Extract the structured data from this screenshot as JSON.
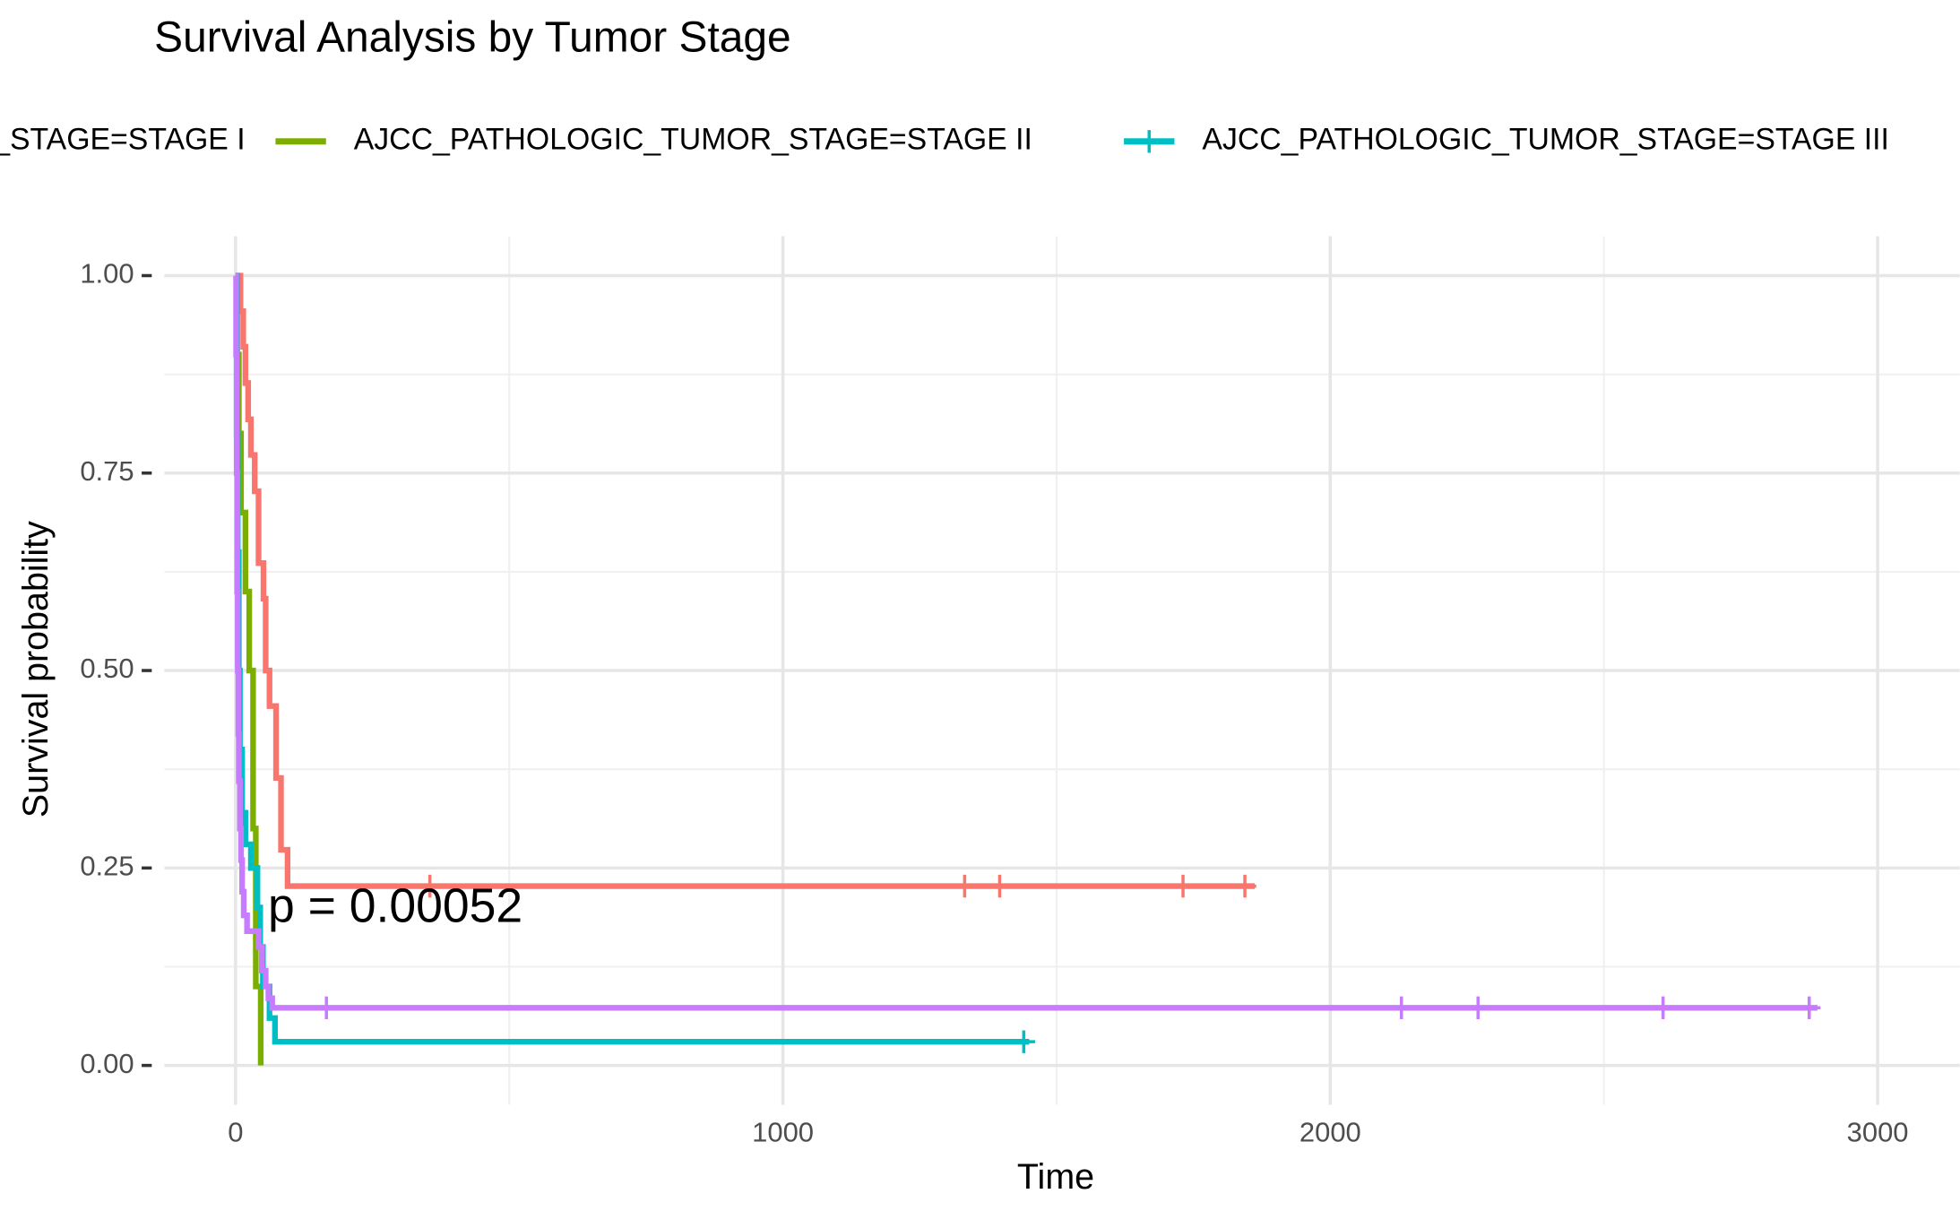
{
  "chart_data": {
    "type": "survival",
    "title": "Survival Analysis by Tumor Stage",
    "x_label": "Time",
    "y_label": "Survival probability",
    "annotation": "p = 0.00052",
    "xlim": [
      -130,
      3150
    ],
    "ylim": [
      -0.05,
      1.05
    ],
    "xticks": [
      0,
      1000,
      2000,
      3000
    ],
    "yticks": [
      {
        "value": 0,
        "label": "0.00"
      },
      {
        "value": 0.25,
        "label": "0.25"
      },
      {
        "value": 0.5,
        "label": "0.50"
      },
      {
        "value": 0.75,
        "label": "0.75"
      },
      {
        "value": 1,
        "label": "1.00"
      }
    ],
    "grid": true,
    "series": [
      {
        "name": "AJCC_PATHOLOGIC_TUMOR_STAGE=STAGE I",
        "color": "#F8766D",
        "x": [
          0,
          9,
          14,
          18,
          23,
          28,
          35,
          42,
          51,
          55,
          62,
          74,
          83,
          95,
          1862
        ],
        "values": [
          1,
          0.955,
          0.91,
          0.864,
          0.818,
          0.773,
          0.727,
          0.636,
          0.591,
          0.5,
          0.455,
          0.364,
          0.273,
          0.227,
          0.227
        ],
        "censor_x": [
          355,
          1332,
          1396,
          1731,
          1844
        ],
        "censor_values": [
          0.227,
          0.227,
          0.227,
          0.227,
          0.227
        ]
      },
      {
        "name": "AJCC_PATHOLOGIC_TUMOR_STAGE=STAGE II",
        "color": "#7CAE00",
        "x": [
          0,
          3,
          6,
          10,
          18,
          25,
          32,
          37,
          46
        ],
        "values": [
          1,
          0.9,
          0.8,
          0.7,
          0.6,
          0.5,
          0.3,
          0.1,
          0
        ],
        "censor_x": [],
        "censor_values": []
      },
      {
        "name": "AJCC_PATHOLOGIC_TUMOR_STAGE=STAGE III",
        "color": "#00BFC4",
        "x": [
          0,
          2,
          4,
          6,
          8,
          12,
          18,
          28,
          40,
          45,
          50,
          62,
          72,
          1450
        ],
        "values": [
          1,
          0.8,
          0.65,
          0.5,
          0.4,
          0.32,
          0.28,
          0.25,
          0.2,
          0.15,
          0.1,
          0.06,
          0.03,
          0.03
        ],
        "censor_x": [
          1440
        ],
        "censor_values": [
          0.03
        ]
      },
      {
        "name": null,
        "color": "#C77CFF",
        "x": [
          0,
          1,
          2,
          3,
          4,
          5,
          6,
          8,
          10,
          12,
          15,
          21,
          42,
          48,
          55,
          60,
          67,
          2890
        ],
        "values": [
          1,
          0.9,
          0.75,
          0.6,
          0.5,
          0.42,
          0.36,
          0.3,
          0.26,
          0.22,
          0.19,
          0.17,
          0.15,
          0.12,
          0.1,
          0.085,
          0.073,
          0.073
        ],
        "censor_x": [
          166,
          2130,
          2270,
          2608,
          2875
        ],
        "censor_values": [
          0.073,
          0.073,
          0.073,
          0.073,
          0.073
        ]
      }
    ]
  }
}
